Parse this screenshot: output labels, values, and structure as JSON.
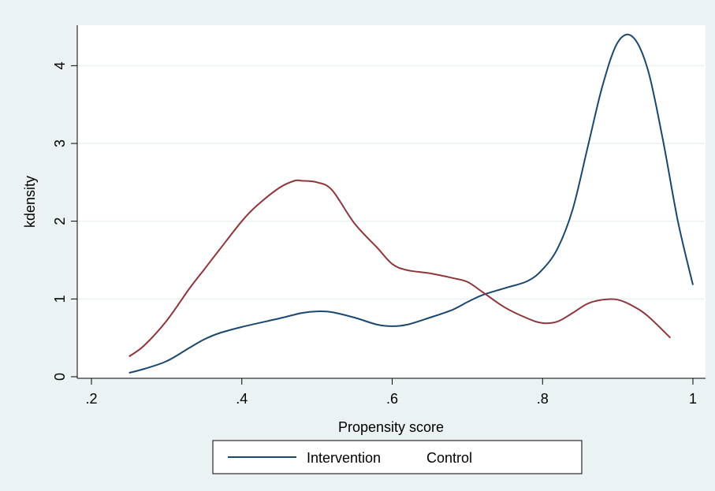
{
  "chart_data": {
    "type": "line",
    "xlabel": "Propensity score",
    "ylabel": "kdensity",
    "xlim": [
      0.2,
      1.0
    ],
    "ylim": [
      0,
      4.5
    ],
    "x_ticks": [
      0.2,
      0.4,
      0.6,
      0.8,
      1.0
    ],
    "x_tick_labels": [
      ".2",
      ".4",
      ".6",
      ".8",
      "1"
    ],
    "y_ticks": [
      0,
      1,
      2,
      3,
      4
    ],
    "y_tick_labels": [
      "0",
      "1",
      "2",
      "3",
      "4"
    ],
    "grid": "horizontal",
    "legend_position": "bottom",
    "colors": {
      "background": "#eaf2f3",
      "plot_background": "#ffffff",
      "gridline": "#eaf2f3",
      "axis": "#000000"
    },
    "series": [
      {
        "name": "Intervention",
        "color": "#1a476f",
        "x": [
          0.25,
          0.27,
          0.3,
          0.33,
          0.35,
          0.37,
          0.4,
          0.45,
          0.48,
          0.5,
          0.52,
          0.55,
          0.58,
          0.6,
          0.62,
          0.65,
          0.68,
          0.7,
          0.72,
          0.75,
          0.78,
          0.8,
          0.82,
          0.84,
          0.86,
          0.88,
          0.9,
          0.92,
          0.94,
          0.96,
          0.98,
          1.0
        ],
        "y": [
          0.05,
          0.1,
          0.2,
          0.37,
          0.48,
          0.56,
          0.64,
          0.75,
          0.82,
          0.84,
          0.83,
          0.76,
          0.67,
          0.65,
          0.67,
          0.76,
          0.86,
          0.96,
          1.05,
          1.14,
          1.23,
          1.38,
          1.65,
          2.15,
          2.95,
          3.75,
          4.3,
          4.37,
          3.95,
          3.05,
          2.0,
          1.18
        ]
      },
      {
        "name": "Control",
        "color": "#90353b",
        "x": [
          0.25,
          0.27,
          0.3,
          0.33,
          0.35,
          0.37,
          0.4,
          0.42,
          0.45,
          0.47,
          0.48,
          0.5,
          0.52,
          0.55,
          0.58,
          0.6,
          0.62,
          0.65,
          0.68,
          0.7,
          0.72,
          0.75,
          0.78,
          0.8,
          0.82,
          0.84,
          0.86,
          0.88,
          0.9,
          0.92,
          0.94,
          0.97
        ],
        "y": [
          0.26,
          0.4,
          0.72,
          1.13,
          1.38,
          1.63,
          2.0,
          2.2,
          2.43,
          2.52,
          2.52,
          2.5,
          2.4,
          1.97,
          1.66,
          1.45,
          1.37,
          1.33,
          1.27,
          1.22,
          1.09,
          0.89,
          0.75,
          0.69,
          0.71,
          0.82,
          0.94,
          0.99,
          0.99,
          0.91,
          0.78,
          0.5
        ]
      }
    ]
  }
}
